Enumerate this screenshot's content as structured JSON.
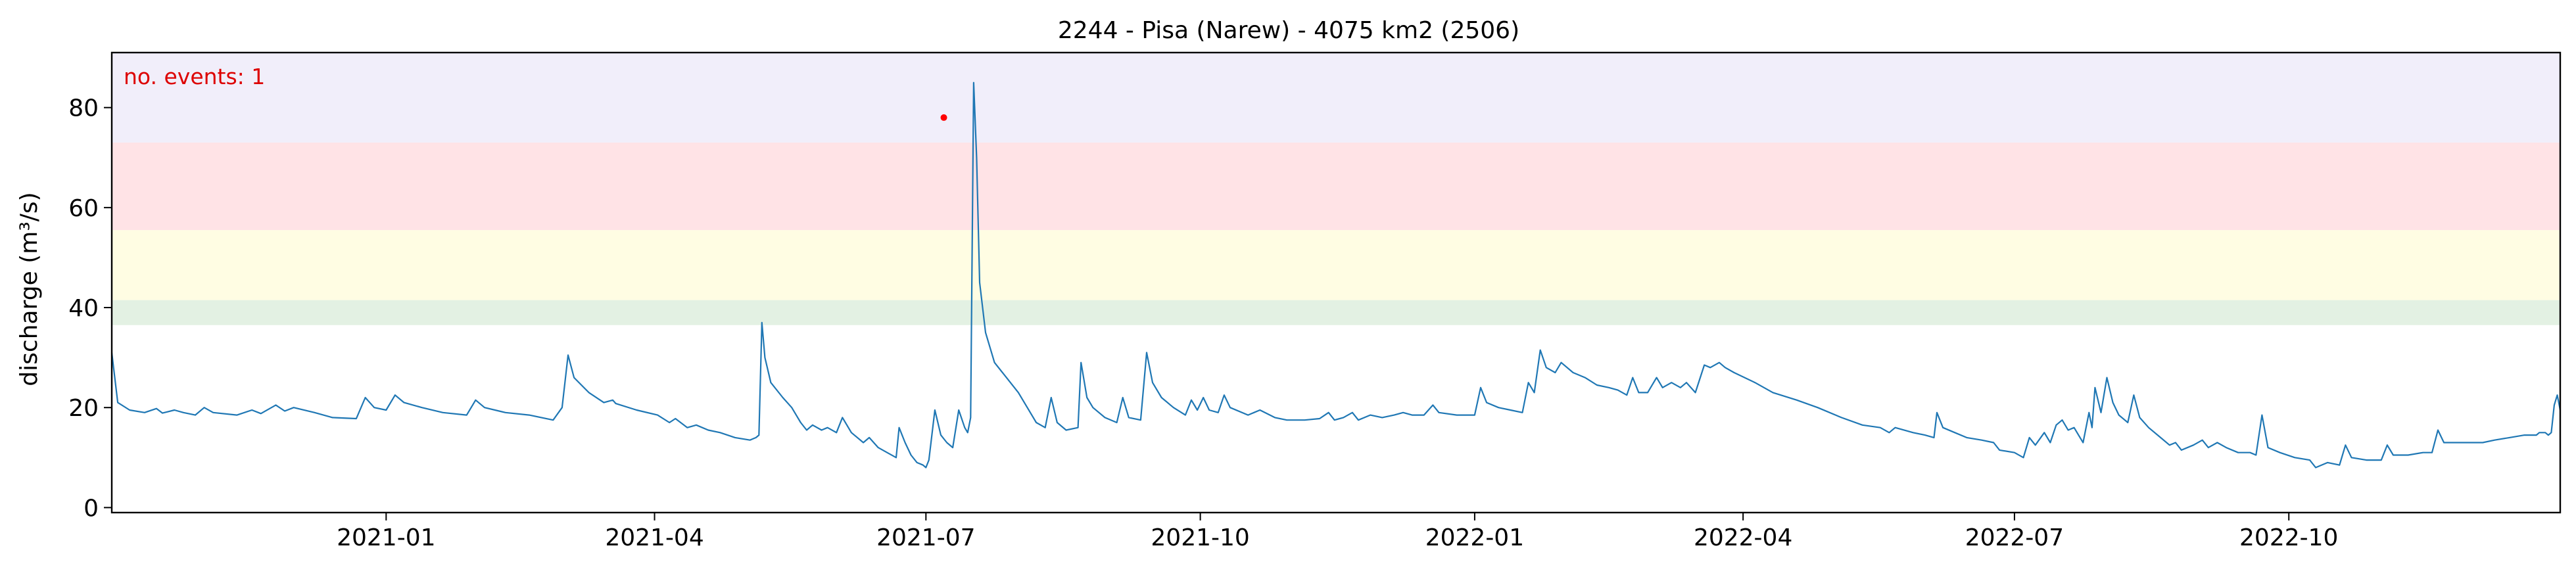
{
  "chart_data": {
    "type": "line",
    "title": "2244 - Pisa (Narew) - 4075 km2 (2506)",
    "xlabel": "",
    "ylabel": "discharge (m³/s)",
    "annotation": "no. events: 1",
    "annotation_color": "#dd0000",
    "line_color": "#1f77b4",
    "event_marker_color": "#ff0000",
    "xlim": [
      "2020-10-01",
      "2022-12-31"
    ],
    "ylim": [
      -1,
      91
    ],
    "yticks": [
      0,
      20,
      40,
      60,
      80
    ],
    "xticks": [
      {
        "date": "2021-01-01",
        "label": "2021-01"
      },
      {
        "date": "2021-04-01",
        "label": "2021-04"
      },
      {
        "date": "2021-07-01",
        "label": "2021-07"
      },
      {
        "date": "2021-10-01",
        "label": "2021-10"
      },
      {
        "date": "2022-01-01",
        "label": "2022-01"
      },
      {
        "date": "2022-04-01",
        "label": "2022-04"
      },
      {
        "date": "2022-07-01",
        "label": "2022-07"
      },
      {
        "date": "2022-10-01",
        "label": "2022-10"
      }
    ],
    "threshold_bands": [
      {
        "from": 36.5,
        "to": 41.5,
        "color": "#e3f1e3"
      },
      {
        "from": 41.5,
        "to": 55.5,
        "color": "#fffde3"
      },
      {
        "from": 55.5,
        "to": 73,
        "color": "#ffe3e6"
      },
      {
        "from": 73,
        "to": 91,
        "color": "#f1eefa"
      }
    ],
    "events": [
      {
        "x": "2021-07-07",
        "y": 78
      }
    ],
    "series": [
      {
        "points": [
          [
            "2020-10-01",
            31
          ],
          [
            "2020-10-03",
            21
          ],
          [
            "2020-10-07",
            19.5
          ],
          [
            "2020-10-12",
            19
          ],
          [
            "2020-10-16",
            19.8
          ],
          [
            "2020-10-18",
            18.9
          ],
          [
            "2020-10-22",
            19.5
          ],
          [
            "2020-10-25",
            19
          ],
          [
            "2020-10-29",
            18.5
          ],
          [
            "2020-11-01",
            20
          ],
          [
            "2020-11-04",
            19
          ],
          [
            "2020-11-12",
            18.5
          ],
          [
            "2020-11-17",
            19.5
          ],
          [
            "2020-11-20",
            18.8
          ],
          [
            "2020-11-25",
            20.5
          ],
          [
            "2020-11-28",
            19.3
          ],
          [
            "2020-12-01",
            20
          ],
          [
            "2020-12-08",
            19
          ],
          [
            "2020-12-14",
            18
          ],
          [
            "2020-12-22",
            17.8
          ],
          [
            "2020-12-25",
            22
          ],
          [
            "2020-12-28",
            20
          ],
          [
            "2021-01-01",
            19.5
          ],
          [
            "2021-01-04",
            22.5
          ],
          [
            "2021-01-07",
            21
          ],
          [
            "2021-01-13",
            20
          ],
          [
            "2021-01-20",
            19
          ],
          [
            "2021-01-28",
            18.5
          ],
          [
            "2021-01-31",
            21.5
          ],
          [
            "2021-02-03",
            20
          ],
          [
            "2021-02-10",
            19
          ],
          [
            "2021-02-18",
            18.5
          ],
          [
            "2021-02-26",
            17.5
          ],
          [
            "2021-03-01",
            20
          ],
          [
            "2021-03-03",
            30.5
          ],
          [
            "2021-03-05",
            26
          ],
          [
            "2021-03-10",
            23
          ],
          [
            "2021-03-15",
            21
          ],
          [
            "2021-03-18",
            21.5
          ],
          [
            "2021-03-19",
            20.8
          ],
          [
            "2021-03-26",
            19.5
          ],
          [
            "2021-04-02",
            18.5
          ],
          [
            "2021-04-06",
            17
          ],
          [
            "2021-04-08",
            17.8
          ],
          [
            "2021-04-12",
            16
          ],
          [
            "2021-04-15",
            16.5
          ],
          [
            "2021-04-19",
            15.5
          ],
          [
            "2021-04-23",
            15
          ],
          [
            "2021-04-28",
            14
          ],
          [
            "2021-05-03",
            13.5
          ],
          [
            "2021-05-05",
            14
          ],
          [
            "2021-05-06",
            14.5
          ],
          [
            "2021-05-07",
            37
          ],
          [
            "2021-05-08",
            30
          ],
          [
            "2021-05-10",
            25
          ],
          [
            "2021-05-14",
            22
          ],
          [
            "2021-05-17",
            20
          ],
          [
            "2021-05-20",
            17
          ],
          [
            "2021-05-22",
            15.5
          ],
          [
            "2021-05-24",
            16.5
          ],
          [
            "2021-05-27",
            15.5
          ],
          [
            "2021-05-29",
            16
          ],
          [
            "2021-06-01",
            15
          ],
          [
            "2021-06-03",
            18
          ],
          [
            "2021-06-06",
            15
          ],
          [
            "2021-06-10",
            13
          ],
          [
            "2021-06-12",
            14
          ],
          [
            "2021-06-15",
            12
          ],
          [
            "2021-06-18",
            11
          ],
          [
            "2021-06-21",
            10
          ],
          [
            "2021-06-22",
            16
          ],
          [
            "2021-06-24",
            13
          ],
          [
            "2021-06-26",
            10.5
          ],
          [
            "2021-06-28",
            9
          ],
          [
            "2021-06-30",
            8.5
          ],
          [
            "2021-07-01",
            8
          ],
          [
            "2021-07-02",
            9.5
          ],
          [
            "2021-07-04",
            19.5
          ],
          [
            "2021-07-06",
            14.5
          ],
          [
            "2021-07-08",
            13
          ],
          [
            "2021-07-10",
            12
          ],
          [
            "2021-07-12",
            19.5
          ],
          [
            "2021-07-14",
            16
          ],
          [
            "2021-07-15",
            15
          ],
          [
            "2021-07-16",
            18
          ],
          [
            "2021-07-17",
            85
          ],
          [
            "2021-07-18",
            70
          ],
          [
            "2021-07-19",
            45
          ],
          [
            "2021-07-21",
            35
          ],
          [
            "2021-07-24",
            29
          ],
          [
            "2021-07-28",
            26
          ],
          [
            "2021-08-01",
            23
          ],
          [
            "2021-08-04",
            20
          ],
          [
            "2021-08-07",
            17
          ],
          [
            "2021-08-10",
            16
          ],
          [
            "2021-08-12",
            22
          ],
          [
            "2021-08-14",
            17
          ],
          [
            "2021-08-17",
            15.5
          ],
          [
            "2021-08-21",
            16
          ],
          [
            "2021-08-22",
            29
          ],
          [
            "2021-08-24",
            22
          ],
          [
            "2021-08-26",
            20
          ],
          [
            "2021-08-30",
            18
          ],
          [
            "2021-09-03",
            17
          ],
          [
            "2021-09-05",
            22
          ],
          [
            "2021-09-07",
            18
          ],
          [
            "2021-09-11",
            17.5
          ],
          [
            "2021-09-13",
            31
          ],
          [
            "2021-09-15",
            25
          ],
          [
            "2021-09-18",
            22
          ],
          [
            "2021-09-22",
            20
          ],
          [
            "2021-09-26",
            18.5
          ],
          [
            "2021-09-28",
            21.5
          ],
          [
            "2021-09-30",
            19.5
          ],
          [
            "2021-10-02",
            22
          ],
          [
            "2021-10-04",
            19.5
          ],
          [
            "2021-10-07",
            19
          ],
          [
            "2021-10-09",
            22.5
          ],
          [
            "2021-10-11",
            20
          ],
          [
            "2021-10-17",
            18.5
          ],
          [
            "2021-10-21",
            19.5
          ],
          [
            "2021-10-26",
            18
          ],
          [
            "2021-10-30",
            17.5
          ],
          [
            "2021-11-05",
            17.5
          ],
          [
            "2021-11-10",
            17.8
          ],
          [
            "2021-11-13",
            19
          ],
          [
            "2021-11-15",
            17.5
          ],
          [
            "2021-11-18",
            18
          ],
          [
            "2021-11-21",
            19
          ],
          [
            "2021-11-23",
            17.5
          ],
          [
            "2021-11-27",
            18.5
          ],
          [
            "2021-12-01",
            18
          ],
          [
            "2021-12-05",
            18.5
          ],
          [
            "2021-12-08",
            19
          ],
          [
            "2021-12-11",
            18.5
          ],
          [
            "2021-12-15",
            18.5
          ],
          [
            "2021-12-18",
            20.5
          ],
          [
            "2021-12-20",
            19
          ],
          [
            "2021-12-26",
            18.5
          ],
          [
            "2021-12-30",
            18.5
          ],
          [
            "2022-01-01",
            18.5
          ],
          [
            "2022-01-03",
            24
          ],
          [
            "2022-01-05",
            21
          ],
          [
            "2022-01-09",
            20
          ],
          [
            "2022-01-13",
            19.5
          ],
          [
            "2022-01-17",
            19
          ],
          [
            "2022-01-19",
            25
          ],
          [
            "2022-01-21",
            23
          ],
          [
            "2022-01-23",
            31.5
          ],
          [
            "2022-01-25",
            28
          ],
          [
            "2022-01-28",
            27
          ],
          [
            "2022-01-30",
            29
          ],
          [
            "2022-02-03",
            27
          ],
          [
            "2022-02-07",
            26
          ],
          [
            "2022-02-11",
            24.5
          ],
          [
            "2022-02-15",
            24
          ],
          [
            "2022-02-18",
            23.5
          ],
          [
            "2022-02-21",
            22.5
          ],
          [
            "2022-02-23",
            26
          ],
          [
            "2022-02-25",
            23
          ],
          [
            "2022-02-28",
            23
          ],
          [
            "2022-03-03",
            26
          ],
          [
            "2022-03-05",
            24
          ],
          [
            "2022-03-08",
            25
          ],
          [
            "2022-03-11",
            24
          ],
          [
            "2022-03-13",
            25
          ],
          [
            "2022-03-16",
            23
          ],
          [
            "2022-03-19",
            28.5
          ],
          [
            "2022-03-21",
            28
          ],
          [
            "2022-03-24",
            29
          ],
          [
            "2022-03-26",
            28
          ],
          [
            "2022-03-29",
            27
          ],
          [
            "2022-04-05",
            25
          ],
          [
            "2022-04-11",
            23
          ],
          [
            "2022-04-19",
            21.5
          ],
          [
            "2022-04-26",
            20
          ],
          [
            "2022-05-04",
            18
          ],
          [
            "2022-05-11",
            16.5
          ],
          [
            "2022-05-17",
            16
          ],
          [
            "2022-05-20",
            15
          ],
          [
            "2022-05-22",
            16
          ],
          [
            "2022-05-28",
            15
          ],
          [
            "2022-06-01",
            14.5
          ],
          [
            "2022-06-04",
            14
          ],
          [
            "2022-06-05",
            19
          ],
          [
            "2022-06-07",
            16
          ],
          [
            "2022-06-11",
            15
          ],
          [
            "2022-06-15",
            14
          ],
          [
            "2022-06-20",
            13.5
          ],
          [
            "2022-06-24",
            13
          ],
          [
            "2022-06-26",
            11.5
          ],
          [
            "2022-07-01",
            11
          ],
          [
            "2022-07-04",
            10
          ],
          [
            "2022-07-06",
            14
          ],
          [
            "2022-07-08",
            12.5
          ],
          [
            "2022-07-11",
            15
          ],
          [
            "2022-07-13",
            13
          ],
          [
            "2022-07-15",
            16.5
          ],
          [
            "2022-07-17",
            17.5
          ],
          [
            "2022-07-19",
            15.5
          ],
          [
            "2022-07-21",
            16
          ],
          [
            "2022-07-23",
            14
          ],
          [
            "2022-07-24",
            13
          ],
          [
            "2022-07-26",
            19
          ],
          [
            "2022-07-27",
            16
          ],
          [
            "2022-07-28",
            24
          ],
          [
            "2022-07-30",
            19
          ],
          [
            "2022-08-01",
            26
          ],
          [
            "2022-08-03",
            21
          ],
          [
            "2022-08-05",
            18.5
          ],
          [
            "2022-08-08",
            17
          ],
          [
            "2022-08-10",
            22.5
          ],
          [
            "2022-08-12",
            18
          ],
          [
            "2022-08-15",
            16
          ],
          [
            "2022-08-19",
            14
          ],
          [
            "2022-08-22",
            12.5
          ],
          [
            "2022-08-24",
            13
          ],
          [
            "2022-08-26",
            11.5
          ],
          [
            "2022-08-30",
            12.5
          ],
          [
            "2022-09-02",
            13.5
          ],
          [
            "2022-09-04",
            12
          ],
          [
            "2022-09-07",
            13
          ],
          [
            "2022-09-10",
            12
          ],
          [
            "2022-09-14",
            11
          ],
          [
            "2022-09-18",
            11
          ],
          [
            "2022-09-20",
            10.5
          ],
          [
            "2022-09-22",
            18.5
          ],
          [
            "2022-09-24",
            12
          ],
          [
            "2022-09-28",
            11
          ],
          [
            "2022-10-03",
            10
          ],
          [
            "2022-10-08",
            9.5
          ],
          [
            "2022-10-10",
            8
          ],
          [
            "2022-10-14",
            9
          ],
          [
            "2022-10-18",
            8.5
          ],
          [
            "2022-10-20",
            12.5
          ],
          [
            "2022-10-22",
            10
          ],
          [
            "2022-10-27",
            9.5
          ],
          [
            "2022-11-01",
            9.5
          ],
          [
            "2022-11-03",
            12.5
          ],
          [
            "2022-11-05",
            10.5
          ],
          [
            "2022-11-10",
            10.5
          ],
          [
            "2022-11-15",
            11
          ],
          [
            "2022-11-18",
            11
          ],
          [
            "2022-11-20",
            15.5
          ],
          [
            "2022-11-22",
            13
          ],
          [
            "2022-11-29",
            13
          ],
          [
            "2022-12-05",
            13
          ],
          [
            "2022-12-09",
            13.5
          ],
          [
            "2022-12-14",
            14
          ],
          [
            "2022-12-19",
            14.5
          ],
          [
            "2022-12-23",
            14.5
          ],
          [
            "2022-12-24",
            15
          ],
          [
            "2022-12-25",
            15
          ],
          [
            "2022-12-26",
            15
          ],
          [
            "2022-12-27",
            14.5
          ],
          [
            "2022-12-28",
            15
          ],
          [
            "2022-12-29",
            20.5
          ],
          [
            "2022-12-30",
            22.5
          ],
          [
            "2022-12-31",
            19.5
          ]
        ]
      }
    ]
  }
}
